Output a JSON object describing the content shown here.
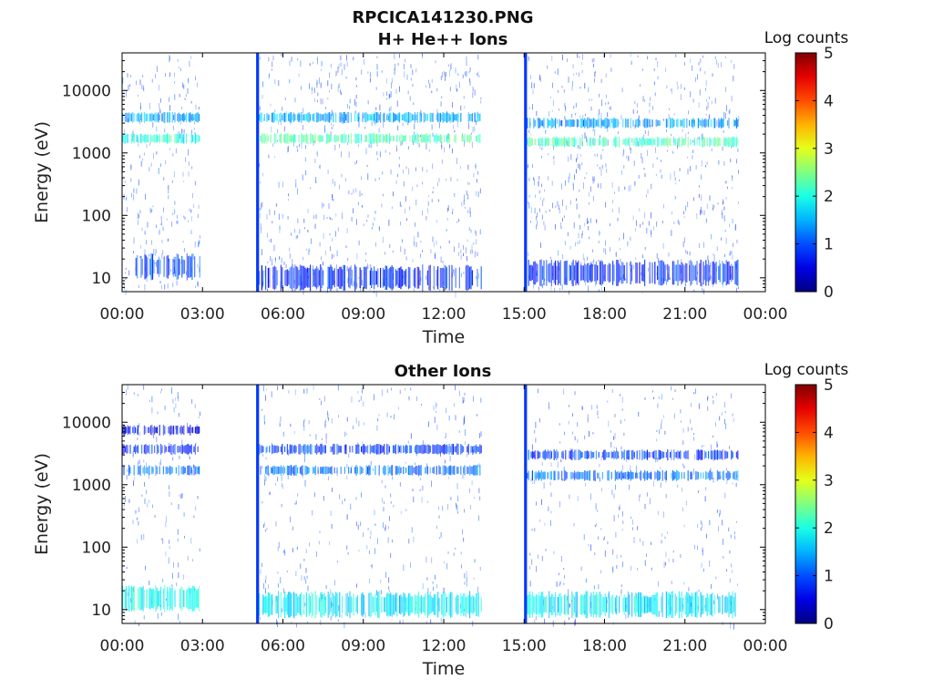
{
  "figure_title": "RPCICA141230.PNG",
  "chart_data": [
    {
      "type": "heatmap",
      "title": "H+ He++ Ions",
      "xlabel": "Time",
      "ylabel": "Energy (eV)",
      "x_ticks": [
        "00:00",
        "03:00",
        "06:00",
        "09:00",
        "12:00",
        "15:00",
        "18:00",
        "21:00",
        "00:00"
      ],
      "x_range_hours": [
        0,
        24
      ],
      "y_scale": "log",
      "y_range": [
        6,
        40000
      ],
      "y_ticks": [
        10,
        100,
        1000,
        10000
      ],
      "y_tick_labels": [
        "10",
        "100",
        "1000",
        "10000"
      ],
      "colorbar": {
        "label": "Log counts",
        "range": [
          0,
          5
        ],
        "ticks": [
          "0",
          "1",
          "2",
          "3",
          "4",
          "5"
        ],
        "colormap": "jet"
      },
      "data_intervals_hours": [
        [
          0,
          2.9
        ],
        [
          5.1,
          13.4
        ],
        [
          15.1,
          23.0
        ]
      ],
      "spikes_hours": [
        5.05,
        15.05
      ],
      "bands": [
        {
          "energy_eV": 1700,
          "level": 2.0,
          "t": [
            0,
            2.9
          ]
        },
        {
          "energy_eV": 3700,
          "level": 1.4,
          "t": [
            0,
            2.9
          ]
        },
        {
          "energy_eV": 15,
          "level": 1.0,
          "t": [
            0.5,
            2.9
          ]
        },
        {
          "energy_eV": 1700,
          "level": 2.2,
          "t": [
            5.1,
            13.4
          ]
        },
        {
          "energy_eV": 3700,
          "level": 1.5,
          "t": [
            5.1,
            13.4
          ]
        },
        {
          "energy_eV": 10,
          "level": 0.8,
          "t": [
            5.1,
            13.4
          ]
        },
        {
          "energy_eV": 1500,
          "level": 2.2,
          "t": [
            15.1,
            23.0
          ]
        },
        {
          "energy_eV": 3000,
          "level": 1.4,
          "t": [
            15.1,
            23.0
          ]
        },
        {
          "energy_eV": 12,
          "level": 0.8,
          "t": [
            15.1,
            23.0
          ]
        }
      ]
    },
    {
      "type": "heatmap",
      "title": "Other Ions",
      "xlabel": "Time",
      "ylabel": "Energy (eV)",
      "x_ticks": [
        "00:00",
        "03:00",
        "06:00",
        "09:00",
        "12:00",
        "15:00",
        "18:00",
        "21:00",
        "00:00"
      ],
      "x_range_hours": [
        0,
        24
      ],
      "y_scale": "log",
      "y_range": [
        6,
        40000
      ],
      "y_ticks": [
        10,
        100,
        1000,
        10000
      ],
      "y_tick_labels": [
        "10",
        "100",
        "1000",
        "10000"
      ],
      "colorbar": {
        "label": "Log counts",
        "range": [
          0,
          5
        ],
        "ticks": [
          "0",
          "1",
          "2",
          "3",
          "4",
          "5"
        ],
        "colormap": "jet"
      },
      "data_intervals_hours": [
        [
          0,
          2.9
        ],
        [
          5.1,
          13.4
        ],
        [
          15.1,
          23.0
        ]
      ],
      "spikes_hours": [
        5.05,
        15.05
      ],
      "bands": [
        {
          "energy_eV": 1700,
          "level": 1.2,
          "t": [
            0,
            2.9
          ]
        },
        {
          "energy_eV": 3700,
          "level": 0.8,
          "t": [
            0,
            2.9
          ]
        },
        {
          "energy_eV": 7500,
          "level": 0.6,
          "t": [
            0,
            2.9
          ]
        },
        {
          "energy_eV": 15,
          "level": 2.0,
          "t": [
            0,
            2.9
          ]
        },
        {
          "energy_eV": 1700,
          "level": 1.2,
          "t": [
            5.1,
            13.4
          ]
        },
        {
          "energy_eV": 3700,
          "level": 0.9,
          "t": [
            5.1,
            13.4
          ]
        },
        {
          "energy_eV": 12,
          "level": 1.8,
          "t": [
            5.1,
            13.4
          ]
        },
        {
          "energy_eV": 1400,
          "level": 1.2,
          "t": [
            15.1,
            23.0
          ]
        },
        {
          "energy_eV": 3000,
          "level": 0.9,
          "t": [
            15.1,
            23.0
          ]
        },
        {
          "energy_eV": 12,
          "level": 1.8,
          "t": [
            15.1,
            23.0
          ]
        }
      ]
    }
  ]
}
